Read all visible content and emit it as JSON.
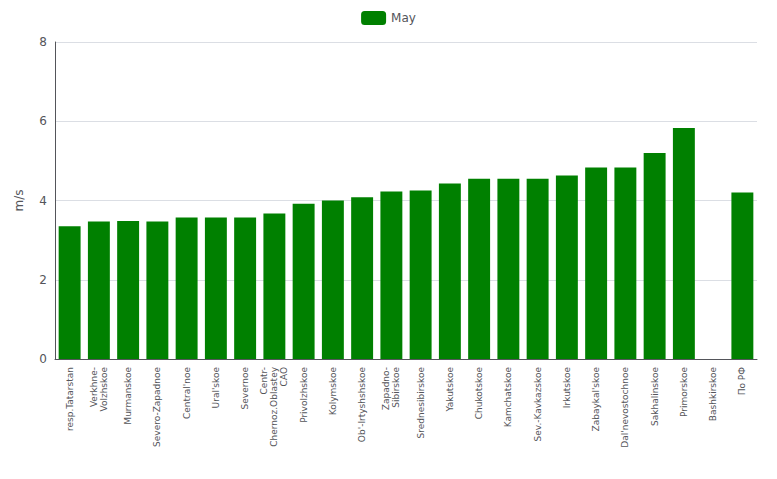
{
  "chart_data": {
    "type": "bar",
    "ylabel": "m/s",
    "categories": [
      "resp.Tatarstan",
      "Verkhne-\nVolzhskoe",
      "Murmanskoe",
      "Severo-Zapadnoe",
      "Central'noe",
      "Ural'skoe",
      "Severnoe",
      "Centr-\nChernoz.Oblastey\nCAO",
      "Privolzhskoe",
      "Kolymskoe",
      "Ob'-Irtyshshskoe",
      "Zapadno-\nSibirskoe",
      "Srednesibirskoe",
      "Yakutskoe",
      "Chukotskoe",
      "Kamchatskoe",
      "Sev.-Kavkazskoe",
      "Irkutskoe",
      "Zabaykal'skoe",
      "Dal'nevostochnoe",
      "Sakhalinskoe",
      "Primorskoe",
      "Bashkirskoe",
      "По РФ"
    ],
    "series": [
      {
        "name": "May",
        "color": "#008000",
        "values": [
          3.35,
          3.47,
          3.48,
          3.47,
          3.57,
          3.57,
          3.57,
          3.67,
          3.92,
          4.0,
          4.08,
          4.23,
          4.25,
          4.43,
          4.55,
          4.55,
          4.55,
          4.63,
          4.83,
          4.83,
          5.2,
          5.83,
          0.0,
          4.2
        ]
      }
    ],
    "ylim": [
      0,
      8
    ],
    "yticks": [
      0,
      2,
      4,
      6,
      8
    ],
    "grid": true,
    "legend": "top"
  }
}
